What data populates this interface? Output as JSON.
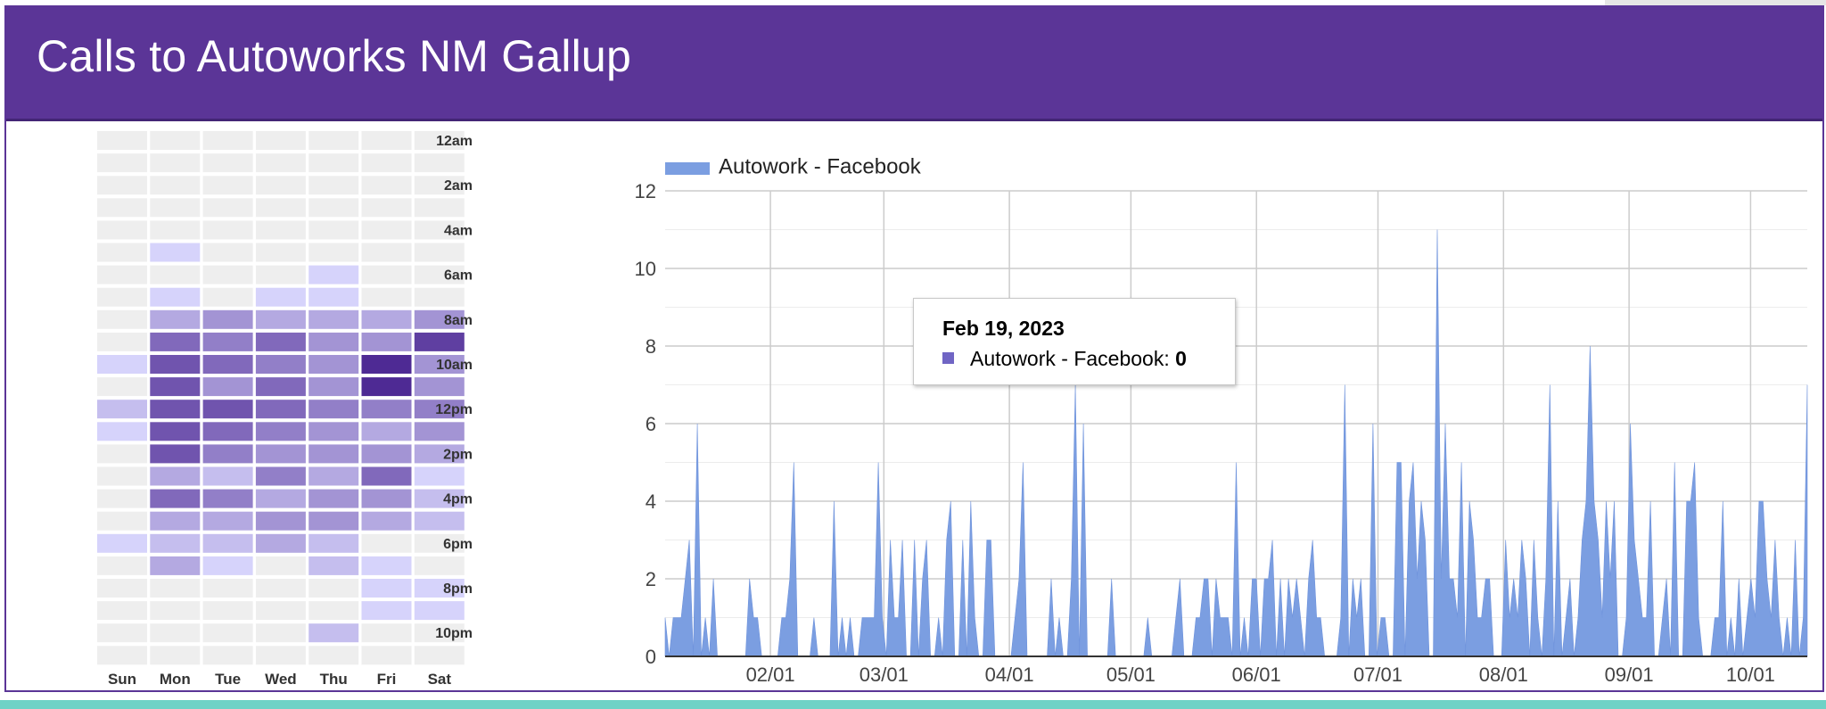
{
  "header": {
    "title": "Calls to Autoworks NM Gallup"
  },
  "chart_data": [
    {
      "type": "heatmap",
      "days": [
        "Sun",
        "Mon",
        "Tue",
        "Wed",
        "Thu",
        "Fri",
        "Sat"
      ],
      "hour_labels": [
        "12am",
        "2am",
        "4am",
        "6am",
        "8am",
        "10am",
        "12pm",
        "2pm",
        "4pm",
        "6pm",
        "8pm",
        "10pm"
      ],
      "color_scale": {
        "empty": "#eeeeee",
        "low": "#d6d3fb",
        "high": "#4e2a94"
      },
      "intensity": [
        [
          0,
          0,
          0,
          0,
          0,
          0,
          0
        ],
        [
          0,
          0,
          0,
          0,
          0,
          0,
          0
        ],
        [
          0,
          0,
          0,
          0,
          0,
          0,
          0
        ],
        [
          0,
          0,
          0,
          0,
          0,
          0,
          0
        ],
        [
          0,
          0,
          0,
          0,
          0,
          0,
          0
        ],
        [
          0,
          1,
          0,
          0,
          0,
          0,
          0
        ],
        [
          0,
          0,
          0,
          0,
          1,
          0,
          0
        ],
        [
          0,
          1,
          0,
          1,
          1,
          0,
          0
        ],
        [
          0,
          3,
          4,
          3,
          3,
          3,
          4
        ],
        [
          0,
          6,
          5,
          6,
          4,
          4,
          8
        ],
        [
          1,
          7,
          6,
          5,
          4,
          9,
          4
        ],
        [
          0,
          7,
          4,
          6,
          4,
          9,
          4
        ],
        [
          2,
          7,
          7,
          6,
          5,
          5,
          5
        ],
        [
          1,
          7,
          6,
          5,
          4,
          3,
          4
        ],
        [
          0,
          7,
          5,
          4,
          4,
          4,
          3
        ],
        [
          0,
          3,
          2,
          5,
          3,
          6,
          1
        ],
        [
          0,
          6,
          5,
          3,
          4,
          4,
          2
        ],
        [
          0,
          3,
          3,
          4,
          4,
          3,
          2
        ],
        [
          1,
          2,
          2,
          3,
          2,
          0,
          0
        ],
        [
          0,
          3,
          1,
          0,
          2,
          1,
          0
        ],
        [
          0,
          0,
          0,
          0,
          0,
          1,
          1
        ],
        [
          0,
          0,
          0,
          0,
          0,
          1,
          1
        ],
        [
          0,
          0,
          0,
          0,
          2,
          0,
          0
        ],
        [
          0,
          0,
          0,
          0,
          0,
          0,
          0
        ]
      ]
    },
    {
      "type": "area",
      "legend": {
        "position": "top-left",
        "label": "Autowork - Facebook"
      },
      "series": [
        {
          "name": "Autowork - Facebook",
          "color": "#7b9ee1"
        }
      ],
      "x_start": "2023-01-06",
      "x_end": "2023-10-15",
      "ylim": [
        0,
        12
      ],
      "yticks": [
        0,
        2,
        4,
        6,
        8,
        10,
        12
      ],
      "xticks": [
        {
          "label": "02/01",
          "date": "2023-02-01"
        },
        {
          "label": "03/01",
          "date": "2023-03-01"
        },
        {
          "label": "04/01",
          "date": "2023-04-01"
        },
        {
          "label": "05/01",
          "date": "2023-05-01"
        },
        {
          "label": "06/01",
          "date": "2023-06-01"
        },
        {
          "label": "07/01",
          "date": "2023-07-01"
        },
        {
          "label": "08/01",
          "date": "2023-08-01"
        },
        {
          "label": "09/01",
          "date": "2023-09-01"
        },
        {
          "label": "10/01",
          "date": "2023-10-01"
        }
      ],
      "grid": true,
      "values": [
        1,
        0,
        1,
        1,
        1,
        2,
        3,
        0,
        6,
        0,
        1,
        0,
        2,
        0,
        0,
        0,
        0,
        0,
        0,
        0,
        0,
        2,
        1,
        1,
        0,
        0,
        0,
        0,
        0,
        1,
        1,
        2,
        5,
        0,
        0,
        0,
        0,
        1,
        0,
        0,
        0,
        0,
        4,
        0,
        1,
        0,
        1,
        0,
        0,
        1,
        1,
        1,
        1,
        5,
        1,
        0,
        3,
        1,
        1,
        3,
        0,
        0,
        3,
        0,
        2,
        3,
        0,
        0,
        1,
        0,
        3,
        4,
        0,
        0,
        3,
        0,
        4,
        1,
        0,
        0,
        3,
        3,
        0,
        0,
        0,
        0,
        0,
        1,
        2,
        5,
        0,
        0,
        0,
        0,
        0,
        0,
        2,
        0,
        1,
        0,
        0,
        2,
        7,
        0,
        6,
        0,
        0,
        0,
        0,
        0,
        0,
        2,
        0,
        0,
        0,
        0,
        0,
        0,
        0,
        0,
        1,
        0,
        0,
        0,
        0,
        0,
        0,
        1,
        2,
        0,
        0,
        0,
        1,
        1,
        2,
        2,
        0,
        2,
        1,
        1,
        1,
        0,
        5,
        0,
        1,
        0,
        2,
        2,
        0,
        2,
        2,
        3,
        0,
        2,
        0,
        2,
        1,
        2,
        1,
        0,
        2,
        3,
        1,
        1,
        0,
        0,
        0,
        0,
        1,
        7,
        0,
        2,
        1,
        2,
        0,
        0,
        6,
        0,
        1,
        1,
        0,
        0,
        5,
        5,
        0,
        4,
        5,
        2,
        4,
        3,
        0,
        0,
        11,
        2,
        6,
        2,
        2,
        1,
        5,
        0,
        4,
        3,
        1,
        1,
        2,
        2,
        0,
        0,
        0,
        3,
        1,
        2,
        1,
        3,
        2,
        0,
        3,
        1,
        0,
        2,
        7,
        0,
        4,
        0,
        1,
        2,
        0,
        1,
        3,
        4,
        8,
        4,
        3,
        1,
        4,
        2,
        4,
        0,
        0,
        1,
        6,
        3,
        2,
        1,
        1,
        4,
        0,
        0,
        1,
        2,
        0,
        5,
        0,
        0,
        4,
        4,
        5,
        1,
        0,
        0,
        0,
        1,
        1,
        4,
        0,
        1,
        0,
        2,
        0,
        1,
        2,
        1,
        4,
        4,
        2,
        1,
        3,
        1,
        0,
        1,
        0,
        3,
        0,
        1,
        7
      ]
    }
  ],
  "tooltip": {
    "date": "Feb 19, 2023",
    "label": "Autowork - Facebook:",
    "value": "0"
  }
}
